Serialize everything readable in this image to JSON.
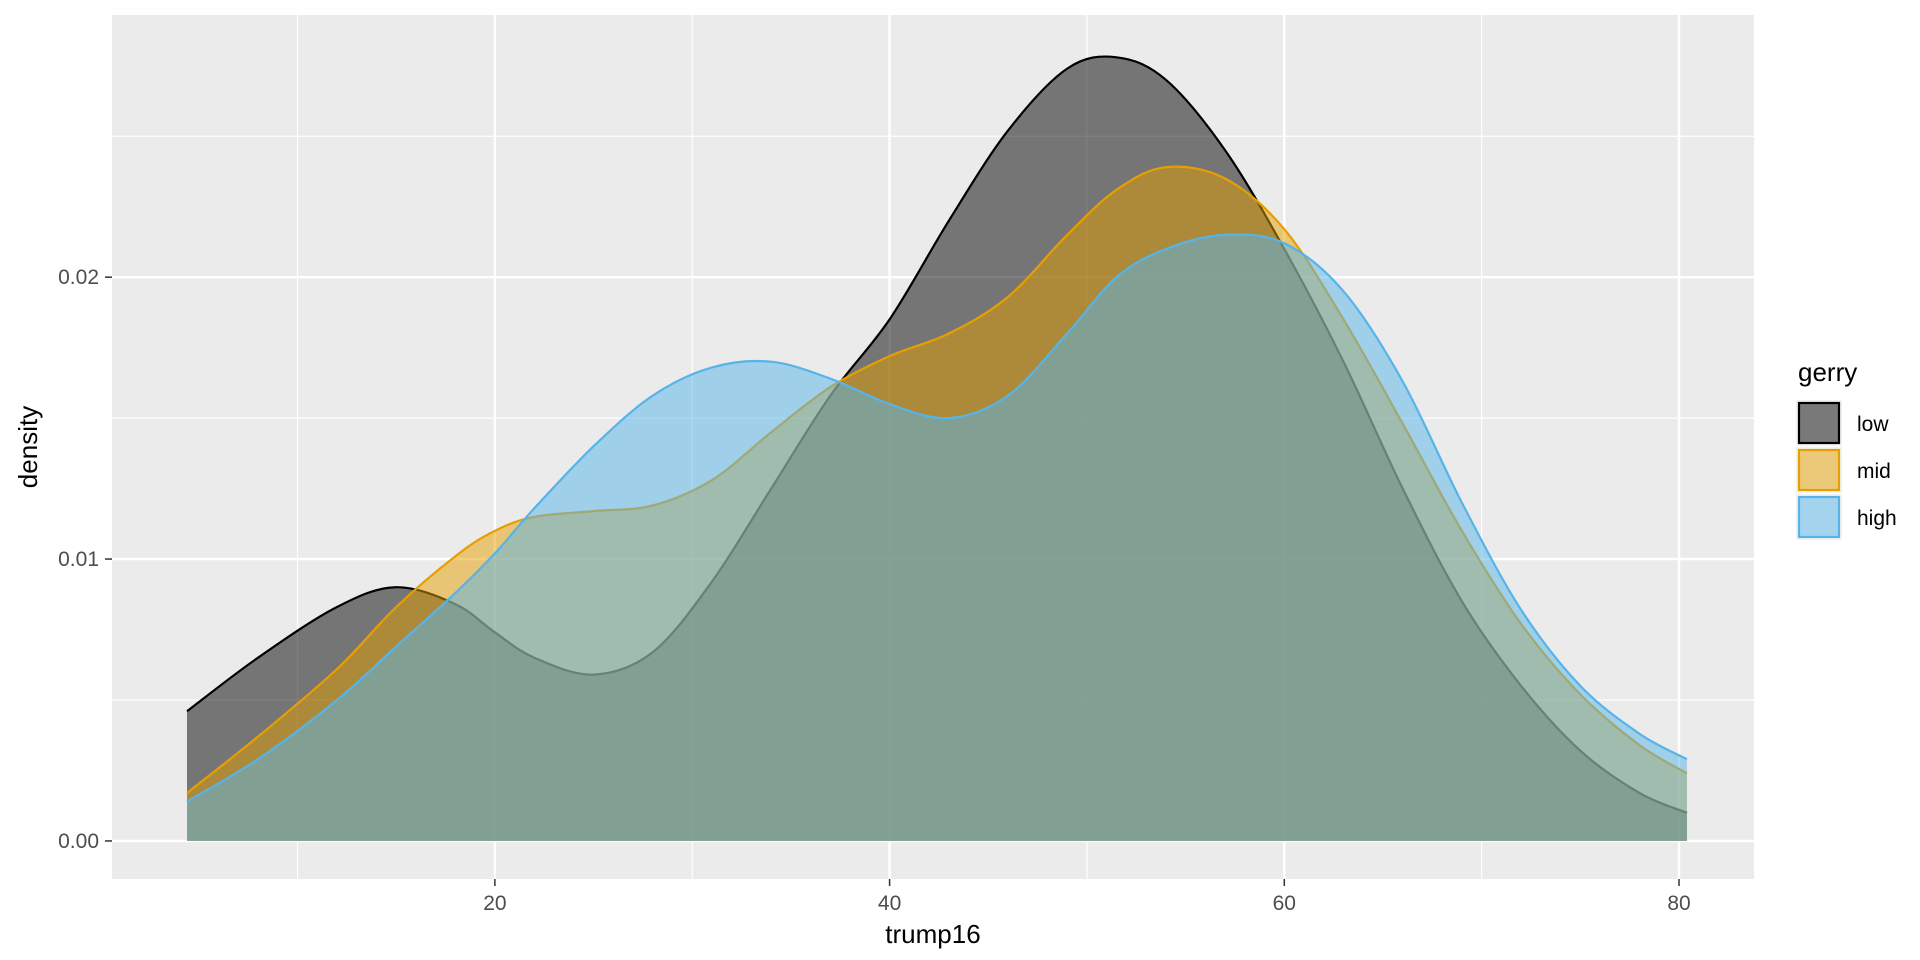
{
  "chart_data": {
    "type": "area",
    "chart_kind": "density",
    "xlabel": "trump16",
    "ylabel": "density",
    "xlim": [
      0.6,
      83.8
    ],
    "ylim": [
      -0.00135,
      0.0293
    ],
    "x_ticks": [
      20,
      40,
      60,
      80
    ],
    "x_tick_labels": [
      "20",
      "40",
      "60",
      "80"
    ],
    "y_ticks": [
      0.0,
      0.01,
      0.02
    ],
    "y_tick_labels": [
      "0.00",
      "0.01",
      "0.02"
    ],
    "grid": true,
    "background": "#ebebeb",
    "legend": {
      "title": "gerry",
      "position": "right",
      "entries": [
        "low",
        "mid",
        "high"
      ]
    },
    "x": [
      4.4,
      8,
      12,
      15,
      18,
      20,
      22,
      25,
      28,
      31,
      34,
      37,
      40,
      43,
      46,
      49,
      51.5,
      54,
      57,
      60,
      63,
      66,
      69,
      72,
      75,
      78,
      80.4
    ],
    "series": [
      {
        "name": "low",
        "fill": "#000000",
        "stroke": "#000000",
        "values": [
          0.0046,
          0.0065,
          0.0083,
          0.009,
          0.0084,
          0.0074,
          0.0065,
          0.0059,
          0.0067,
          0.0092,
          0.0125,
          0.0158,
          0.0185,
          0.022,
          0.0252,
          0.0274,
          0.0278,
          0.027,
          0.0245,
          0.021,
          0.017,
          0.0125,
          0.0085,
          0.0055,
          0.0032,
          0.0017,
          0.001
        ]
      },
      {
        "name": "mid",
        "fill": "#E69F00",
        "stroke": "#E69F00",
        "values": [
          0.0017,
          0.0037,
          0.0061,
          0.0083,
          0.0101,
          0.011,
          0.0115,
          0.0117,
          0.0119,
          0.0128,
          0.0145,
          0.0161,
          0.0172,
          0.018,
          0.0193,
          0.0215,
          0.0231,
          0.0239,
          0.0235,
          0.0217,
          0.0185,
          0.0148,
          0.011,
          0.0077,
          0.0052,
          0.0034,
          0.0024
        ]
      },
      {
        "name": "high",
        "fill": "#56B4E9",
        "stroke": "#56B4E9",
        "values": [
          0.0014,
          0.0029,
          0.005,
          0.0069,
          0.0088,
          0.0102,
          0.0118,
          0.014,
          0.0158,
          0.0168,
          0.017,
          0.0164,
          0.0155,
          0.015,
          0.0158,
          0.018,
          0.02,
          0.021,
          0.0215,
          0.0212,
          0.0195,
          0.0163,
          0.012,
          0.0082,
          0.0055,
          0.0038,
          0.0029
        ]
      }
    ]
  }
}
